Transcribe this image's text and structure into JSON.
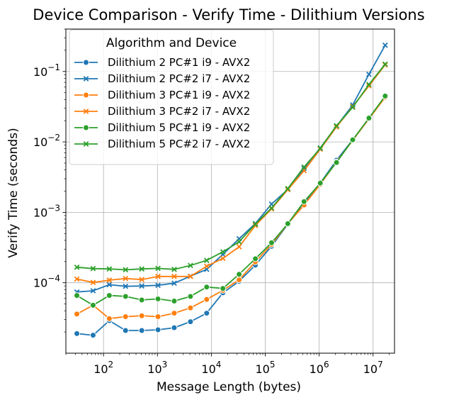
{
  "chart_data": {
    "type": "line",
    "title": "Device Comparison - Verify Time - Dilithium Versions",
    "xlabel": "Message Length (bytes)",
    "ylabel": "Verify Time (seconds)",
    "x_scale": "log",
    "y_scale": "log",
    "xlim": [
      20,
      25000000
    ],
    "ylim": [
      1e-05,
      0.4
    ],
    "x_ticks": [
      {
        "value": 100,
        "base": "10",
        "exp": "2"
      },
      {
        "value": 1000,
        "base": "10",
        "exp": "3"
      },
      {
        "value": 10000,
        "base": "10",
        "exp": "4"
      },
      {
        "value": 100000,
        "base": "10",
        "exp": "5"
      },
      {
        "value": 1000000,
        "base": "10",
        "exp": "6"
      },
      {
        "value": 10000000,
        "base": "10",
        "exp": "7"
      }
    ],
    "y_ticks": [
      {
        "value": 0.0001,
        "base": "10",
        "exp": "−4"
      },
      {
        "value": 0.001,
        "base": "10",
        "exp": "−3"
      },
      {
        "value": 0.01,
        "base": "10",
        "exp": "−2"
      },
      {
        "value": 0.1,
        "base": "10",
        "exp": "−1"
      }
    ],
    "grid": true,
    "legend": {
      "title": "Algorithm and Device",
      "placement": "top-left"
    },
    "x": [
      32,
      64,
      128,
      256,
      512,
      1024,
      2048,
      4096,
      8192,
      16384,
      32768,
      65536,
      131072,
      262144,
      524288,
      1048576,
      2097152,
      4194304,
      8388608,
      16777216
    ],
    "series": [
      {
        "name": "Dilithium 2 PC#1 i9 - AVX2",
        "color": "#1f77b4",
        "marker": "circle",
        "values": [
          1.9e-05,
          1.8e-05,
          2.9e-05,
          2.1e-05,
          2.1e-05,
          2.15e-05,
          2.3e-05,
          2.8e-05,
          3.7e-05,
          7.2e-05,
          0.000105,
          0.000178,
          0.00033,
          0.00068,
          0.00134,
          0.0026,
          0.0055,
          0.0107,
          0.0213,
          0.0437
        ]
      },
      {
        "name": "Dilithium 2 PC#2 i7 - AVX2",
        "color": "#1f77b4",
        "marker": "x",
        "values": [
          7.4e-05,
          7.7e-05,
          9.4e-05,
          8.9e-05,
          9e-05,
          9.2e-05,
          9.85e-05,
          0.000124,
          0.000155,
          0.000253,
          0.000422,
          0.000693,
          0.00131,
          0.00212,
          0.0042,
          0.0082,
          0.0167,
          0.0335,
          0.0912,
          0.236
        ]
      },
      {
        "name": "Dilithium 3 PC#1 i9 - AVX2",
        "color": "#ff7f0e",
        "marker": "circle",
        "values": [
          3.6e-05,
          4.8e-05,
          3.1e-05,
          3.3e-05,
          3.4e-05,
          3.3e-05,
          3.7e-05,
          4.4e-05,
          5.8e-05,
          7.8e-05,
          0.00011,
          0.000198,
          0.00035,
          0.00069,
          0.00127,
          0.0025,
          0.0052,
          0.0105,
          0.0213,
          0.043
        ]
      },
      {
        "name": "Dilithium 3 PC#2 i7 - AVX2",
        "color": "#ff7f0e",
        "marker": "x",
        "values": [
          0.000113,
          0.000101,
          0.000109,
          0.000115,
          0.000111,
          0.000123,
          0.000123,
          0.000123,
          0.000172,
          0.000222,
          0.000324,
          0.00065,
          0.00112,
          0.0021,
          0.0039,
          0.0079,
          0.0163,
          0.0317,
          0.0625,
          0.124
        ]
      },
      {
        "name": "Dilithium 5 PC#1 i9 - AVX2",
        "color": "#2ca02c",
        "marker": "circle",
        "values": [
          6.6e-05,
          4.8e-05,
          6.6e-05,
          6.4e-05,
          5.7e-05,
          5.9e-05,
          5.5e-05,
          6.4e-05,
          8.7e-05,
          8.3e-05,
          0.000132,
          0.000219,
          0.00037,
          0.00069,
          0.00142,
          0.0026,
          0.0051,
          0.0107,
          0.0218,
          0.0448
        ]
      },
      {
        "name": "Dilithium 5 PC#2 i7 - AVX2",
        "color": "#2ca02c",
        "marker": "x",
        "values": [
          0.000166,
          0.000159,
          0.000157,
          0.000153,
          0.000157,
          0.00016,
          0.000155,
          0.000176,
          0.000208,
          0.000275,
          0.000382,
          0.00068,
          0.00115,
          0.00218,
          0.0044,
          0.0081,
          0.017,
          0.031,
          0.0654,
          0.127
        ]
      }
    ]
  }
}
